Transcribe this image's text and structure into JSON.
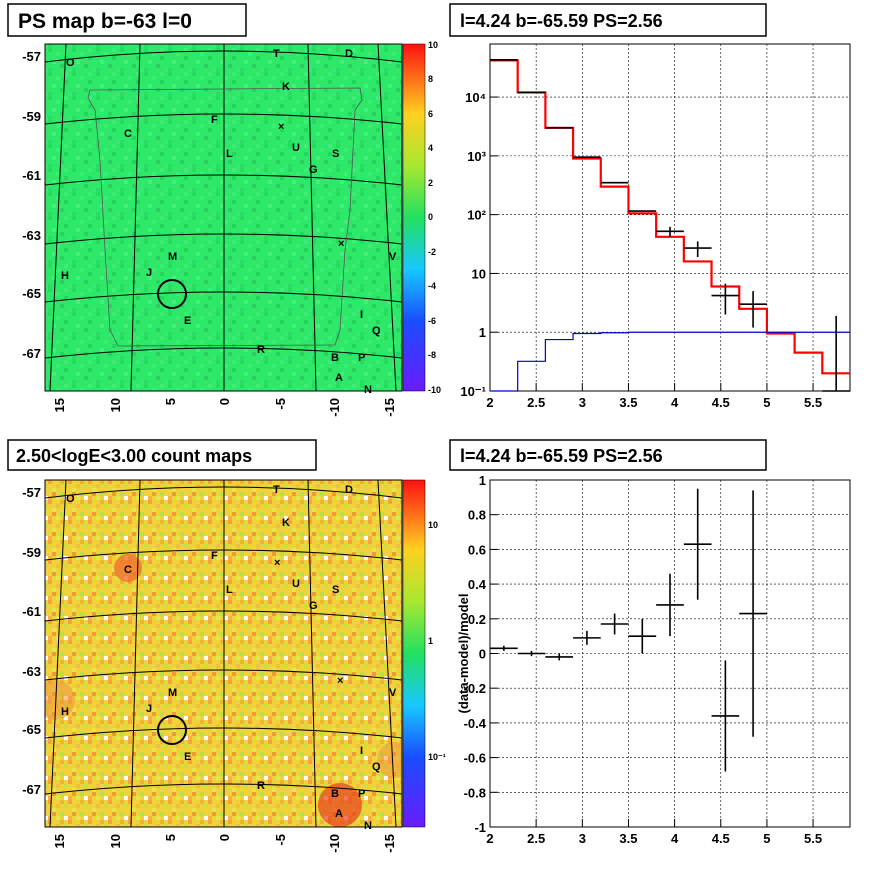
{
  "panels": {
    "top_left_title": "PS map b=-63 l=0",
    "top_right_title": "l=4.24 b=-65.59 PS=2.56",
    "bottom_left_title": "2.50<logE<3.00 count maps",
    "bottom_right_title": "l=4.24 b=-65.59 PS=2.56"
  },
  "sky_maps": {
    "lat_ticks": [
      "-57",
      "-59",
      "-61",
      "-63",
      "-65",
      "-67"
    ],
    "lon_ticks": [
      "15",
      "10",
      "5",
      "0",
      "-5",
      "-10",
      "-15"
    ],
    "sources": [
      "O",
      "T",
      "D",
      "K",
      "C",
      "F",
      "L",
      "U",
      "S",
      "G",
      "M",
      "J",
      "H",
      "V",
      "E",
      "I",
      "Q",
      "R",
      "B",
      "P",
      "A",
      "N"
    ],
    "ps_colorbar_ticks": [
      "10",
      "8",
      "6",
      "4",
      "2",
      "0",
      "-2",
      "-4",
      "-6",
      "-8",
      "-10"
    ],
    "count_colorbar_ticks": [
      "10",
      "1",
      "10⁻¹"
    ],
    "colors": {
      "ps_background": "#2ee86a",
      "count_background": "#f2d23a",
      "circle": "#000000"
    }
  },
  "chart_data": [
    {
      "type": "line",
      "panel": "spectrum",
      "title": "l=4.24 b=-65.59 PS=2.56",
      "xlabel": "",
      "ylabel": "",
      "xlim": [
        2,
        5.9
      ],
      "ylim": [
        0.1,
        80000
      ],
      "yscale": "log",
      "grid": true,
      "x_ticks": [
        "2",
        "2.5",
        "3",
        "3.5",
        "4",
        "4.5",
        "5",
        "5.5"
      ],
      "y_ticks": [
        "10⁻¹",
        "1",
        "10",
        "10²",
        "10³",
        "10⁴"
      ],
      "series": [
        {
          "color": "#ff0000",
          "style": "step",
          "edges": [
            2.0,
            2.3,
            2.6,
            2.9,
            3.2,
            3.5,
            3.8,
            4.1,
            4.4,
            4.7,
            5.0,
            5.3,
            5.6,
            5.9
          ],
          "values": [
            42000,
            12000,
            3000,
            900,
            300,
            105,
            42,
            16,
            6,
            2.5,
            0.95,
            0.45,
            0.2
          ]
        },
        {
          "color": "#0000cc",
          "style": "step",
          "edges": [
            2.0,
            2.3,
            2.6,
            2.9,
            3.2,
            3.5,
            3.8,
            4.1,
            4.4,
            4.7,
            5.0,
            5.3,
            5.6,
            5.9
          ],
          "values": [
            0.08,
            0.32,
            0.75,
            0.95,
            0.98,
            1.0,
            1.0,
            1.0,
            1.0,
            1.0,
            1.0,
            1.0,
            1.0
          ]
        },
        {
          "color": "#000000",
          "style": "points",
          "x": [
            2.15,
            2.45,
            2.75,
            3.05,
            3.35,
            3.65,
            3.95,
            4.25,
            4.55,
            4.85,
            5.75
          ],
          "y": [
            43000,
            12000,
            3000,
            950,
            350,
            115,
            52,
            27,
            4.2,
            3.0,
            0.0
          ],
          "yerr_low": [
            0,
            0,
            0,
            0,
            0,
            0,
            10,
            8,
            2.2,
            1.8,
            0
          ],
          "yerr_high": [
            0,
            0,
            0,
            0,
            0,
            0,
            10,
            8,
            2.5,
            2.0,
            1.9
          ],
          "xerr": [
            0.15,
            0.15,
            0.15,
            0.15,
            0.15,
            0.15,
            0.15,
            0.15,
            0.15,
            0.15,
            0.15
          ]
        }
      ]
    },
    {
      "type": "scatter",
      "panel": "residual",
      "title": "l=4.24 b=-65.59 PS=2.56",
      "xlabel": "",
      "ylabel": "(data-model)/model",
      "xlim": [
        2,
        5.9
      ],
      "ylim": [
        -1,
        1
      ],
      "grid": true,
      "x_ticks": [
        "2",
        "2.5",
        "3",
        "3.5",
        "4",
        "4.5",
        "5",
        "5.5"
      ],
      "y_ticks": [
        "-1",
        "-0.8",
        "-0.6",
        "-0.4",
        "-0.2",
        "0",
        "0.2",
        "0.4",
        "0.6",
        "0.8",
        "1"
      ],
      "series": [
        {
          "color": "#000000",
          "x": [
            2.15,
            2.45,
            2.75,
            3.05,
            3.35,
            3.65,
            3.95,
            4.25,
            4.55,
            4.85
          ],
          "y": [
            0.03,
            0.0,
            -0.02,
            0.09,
            0.17,
            0.1,
            0.28,
            0.63,
            -0.36,
            0.23
          ],
          "yerr": [
            0.015,
            0.015,
            0.02,
            0.04,
            0.06,
            0.1,
            0.18,
            0.32,
            0.32,
            0.71
          ],
          "xerr": [
            0.15,
            0.15,
            0.15,
            0.15,
            0.15,
            0.15,
            0.15,
            0.15,
            0.15,
            0.15
          ]
        }
      ]
    }
  ]
}
